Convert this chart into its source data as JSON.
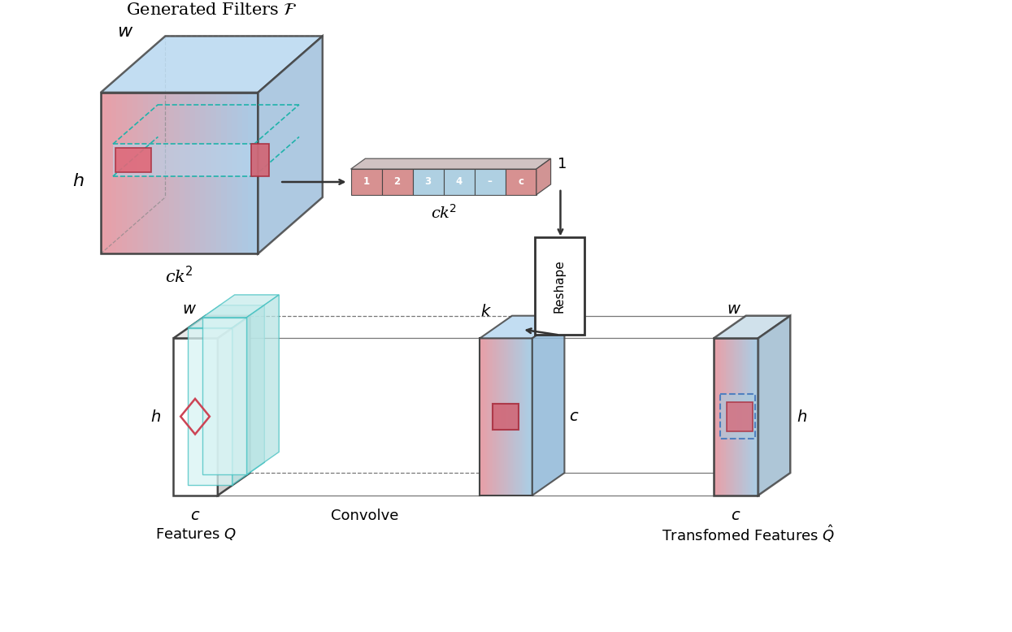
{
  "title": "Generated Filters $\\mathcal{F}$",
  "labels": {
    "ck2_top_cube": "ck$^2$",
    "ck2_bar": "ck$^2$",
    "one_label": "1",
    "k_label": "$k$",
    "c_label_mid": "$c$",
    "c_label_left": "$c$",
    "c_label_right": "$c$",
    "h_label_cube": "$h$",
    "w_label_cube": "$w$",
    "h_label_fq": "$h$",
    "w_label_fq": "$w$",
    "h_label_tq": "$h$",
    "w_label_tq": "$w$",
    "reshape": "Reshape",
    "convolve": "Convolve",
    "features_q": "Features $Q$",
    "transformed": "Transfomed Features $\\hat{Q}$"
  },
  "bar_labels": [
    "1",
    "2",
    "3",
    "4",
    "–",
    "c"
  ],
  "bar_colors": [
    "#d48888",
    "#d48888",
    "#a8cce0",
    "#a8cce0",
    "#a8cce0",
    "#d48888"
  ]
}
